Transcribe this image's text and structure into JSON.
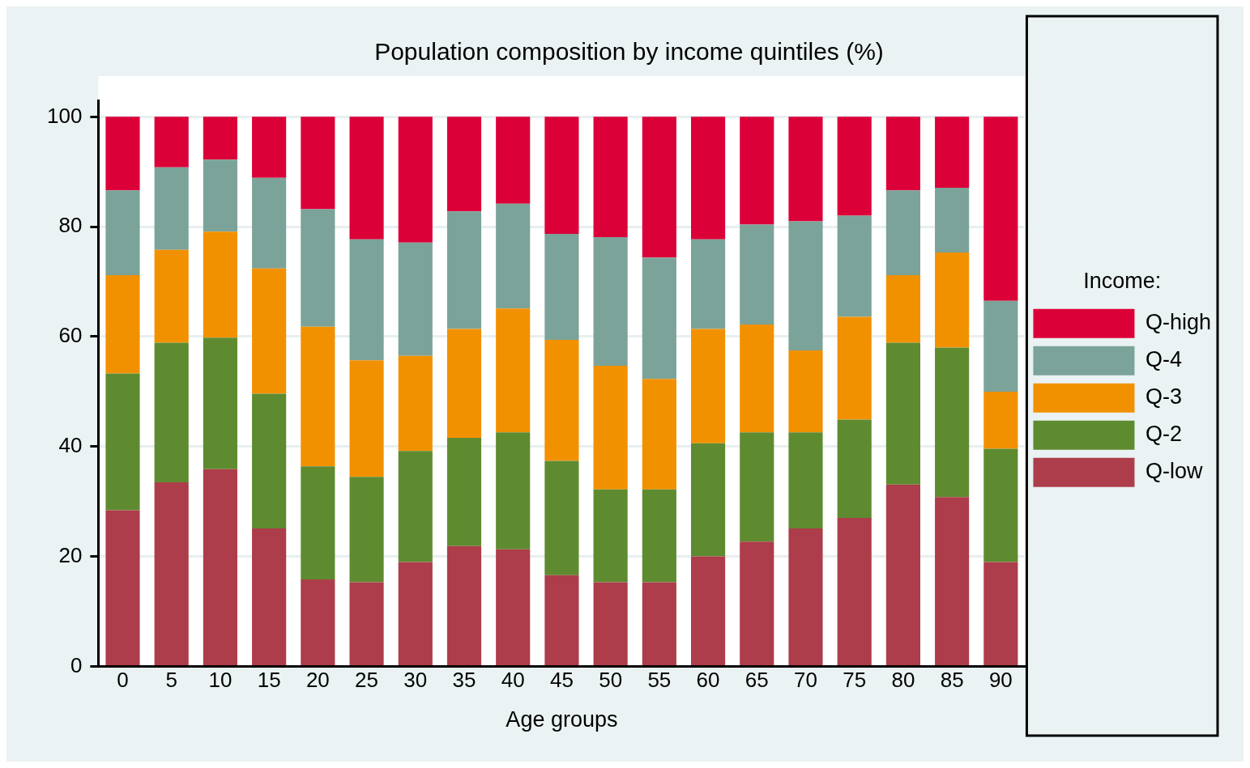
{
  "chart_data": {
    "type": "bar",
    "title": "Population composition by income quintiles (%)",
    "xlabel": "Age groups",
    "legend_title": "Income:",
    "categories": [
      "0",
      "5",
      "10",
      "15",
      "20",
      "25",
      "30",
      "35",
      "40",
      "45",
      "50",
      "55",
      "60",
      "65",
      "70",
      "75",
      "80",
      "85",
      "90"
    ],
    "stacked": true,
    "ylim": [
      0,
      103
    ],
    "yticks": [
      0,
      20,
      40,
      60,
      80,
      100
    ],
    "grid": "y",
    "legend": "right",
    "series": [
      {
        "name": "Q-low",
        "color": "#ad3d4a",
        "values": [
          28.4,
          33.5,
          35.9,
          25.1,
          15.8,
          15.3,
          19.0,
          21.9,
          21.3,
          16.6,
          15.3,
          15.3,
          20.0,
          22.7,
          25.1,
          27.0,
          33.1,
          30.8,
          19.0
        ]
      },
      {
        "name": "Q-2",
        "color": "#5f8b30",
        "values": [
          24.9,
          25.4,
          23.9,
          24.5,
          20.6,
          19.2,
          20.2,
          19.7,
          21.3,
          20.8,
          16.9,
          16.9,
          20.6,
          19.9,
          17.5,
          17.9,
          25.8,
          27.2,
          20.6
        ]
      },
      {
        "name": "Q-3",
        "color": "#f29100",
        "values": [
          17.9,
          16.9,
          19.3,
          22.8,
          25.4,
          21.2,
          17.3,
          19.8,
          22.5,
          22.0,
          22.5,
          20.1,
          20.8,
          19.6,
          14.9,
          18.7,
          12.3,
          17.3,
          10.4
        ]
      },
      {
        "name": "Q-4",
        "color": "#7ba399",
        "values": [
          15.4,
          15.0,
          13.1,
          16.5,
          21.4,
          22.0,
          20.6,
          21.4,
          19.1,
          19.3,
          23.4,
          22.1,
          16.3,
          18.2,
          23.5,
          18.4,
          15.4,
          11.8,
          16.5
        ]
      },
      {
        "name": "Q-high",
        "color": "#dc0039",
        "values": [
          13.4,
          9.2,
          7.8,
          11.1,
          16.8,
          22.3,
          22.9,
          17.2,
          15.8,
          21.3,
          21.9,
          25.6,
          22.3,
          19.6,
          19.0,
          18.0,
          13.4,
          12.9,
          33.5
        ]
      }
    ]
  }
}
